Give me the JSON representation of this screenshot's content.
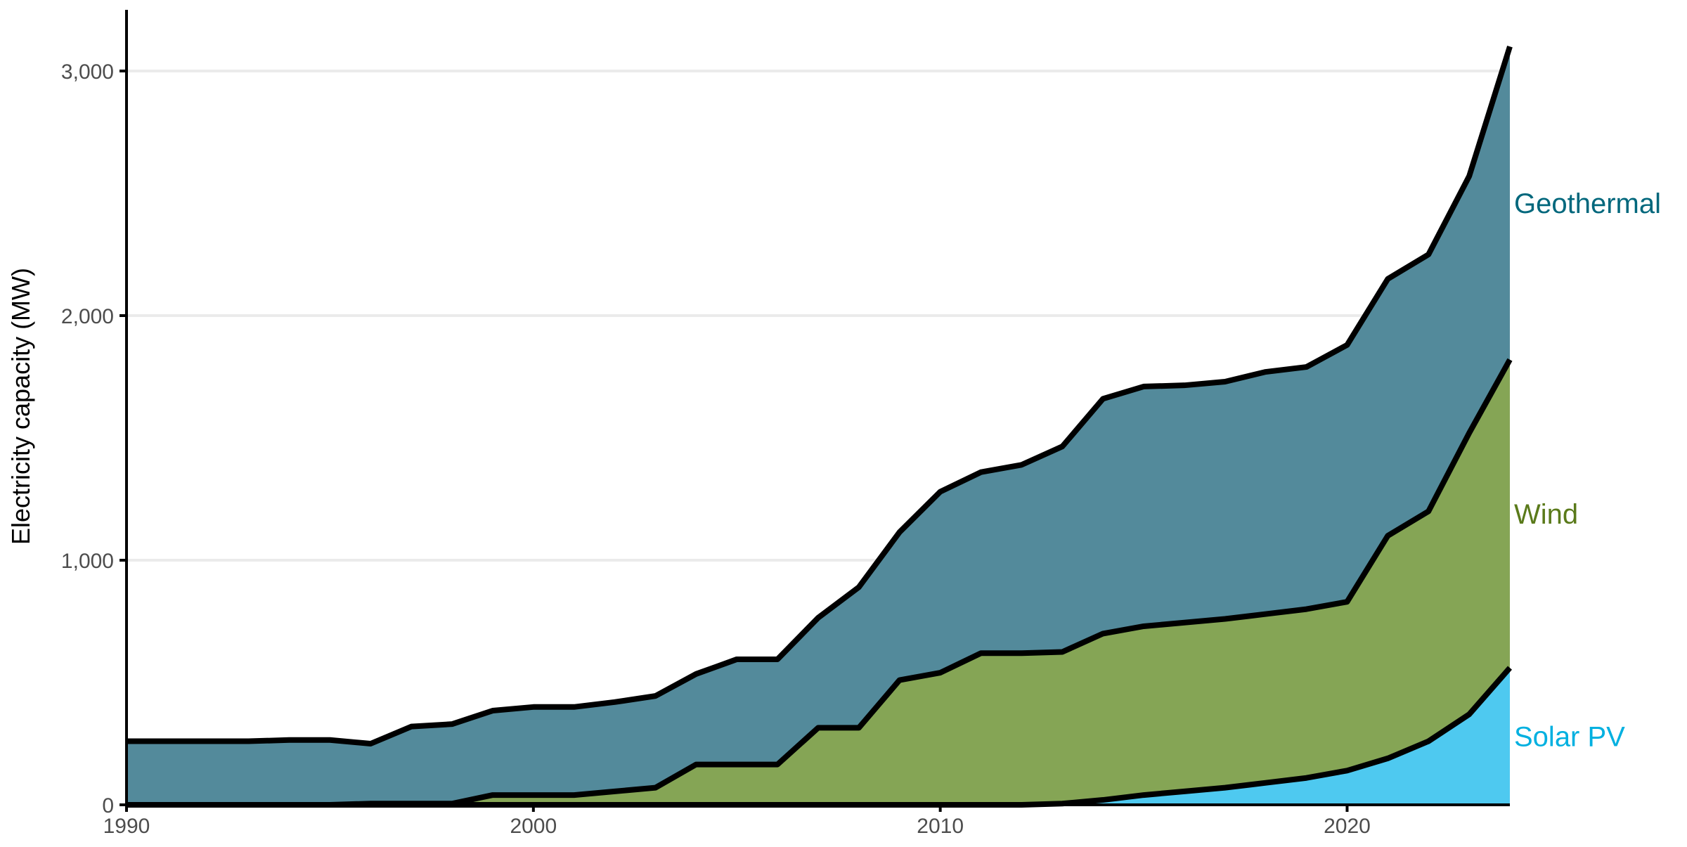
{
  "chart_data": {
    "type": "area",
    "stacked": true,
    "title": "",
    "xlabel": "",
    "ylabel": "Electricity capacity (MW)",
    "xlim": [
      1990,
      2024
    ],
    "ylim": [
      0,
      3250
    ],
    "x_ticks": [
      1990,
      2000,
      2010,
      2020
    ],
    "x_tick_labels": [
      "1990",
      "2000",
      "2010",
      "2020"
    ],
    "y_ticks": [
      0,
      1000,
      2000,
      3000
    ],
    "y_tick_labels": [
      "0",
      "1,000",
      "2,000",
      "3,000"
    ],
    "grid": "horizontal major",
    "legend": "direct labels at right end of each series",
    "x": [
      1990,
      1991,
      1992,
      1993,
      1994,
      1995,
      1996,
      1997,
      1998,
      1999,
      2000,
      2001,
      2002,
      2003,
      2004,
      2005,
      2006,
      2007,
      2008,
      2009,
      2010,
      2011,
      2012,
      2013,
      2014,
      2015,
      2016,
      2017,
      2018,
      2019,
      2020,
      2021,
      2022,
      2023,
      2024
    ],
    "series": [
      {
        "name": "Solar PV",
        "color": "#4ec9f0",
        "label_color": "#00b0e0",
        "values": [
          0,
          0,
          0,
          0,
          0,
          0,
          0,
          0,
          0,
          0,
          0,
          0,
          0,
          0,
          0,
          0,
          0,
          0,
          0,
          0,
          0,
          0,
          0,
          5,
          20,
          40,
          55,
          70,
          90,
          110,
          140,
          190,
          260,
          370,
          560
        ]
      },
      {
        "name": "Wind",
        "color": "#85a555",
        "label_color": "#5a7a1a",
        "values": [
          0,
          0,
          0,
          0,
          0,
          0,
          5,
          5,
          5,
          40,
          40,
          40,
          55,
          70,
          165,
          165,
          165,
          315,
          315,
          510,
          540,
          620,
          620,
          620,
          680,
          690,
          690,
          690,
          690,
          690,
          690,
          910,
          940,
          1150,
          1260
        ]
      },
      {
        "name": "Geothermal",
        "color": "#538a9b",
        "label_color": "#00677c",
        "values": [
          260,
          260,
          260,
          260,
          265,
          265,
          245,
          315,
          325,
          345,
          360,
          360,
          365,
          375,
          370,
          430,
          430,
          450,
          575,
          605,
          740,
          740,
          770,
          840,
          960,
          980,
          970,
          970,
          990,
          990,
          1050,
          1050,
          1050,
          1050,
          1280
        ]
      }
    ],
    "totals": [
      260,
      260,
      260,
      260,
      265,
      265,
      250,
      320,
      330,
      385,
      400,
      400,
      420,
      445,
      535,
      595,
      595,
      765,
      890,
      1115,
      1280,
      1360,
      1390,
      1465,
      1660,
      1710,
      1715,
      1730,
      1770,
      1790,
      1880,
      2150,
      2250,
      2570,
      3100
    ]
  }
}
